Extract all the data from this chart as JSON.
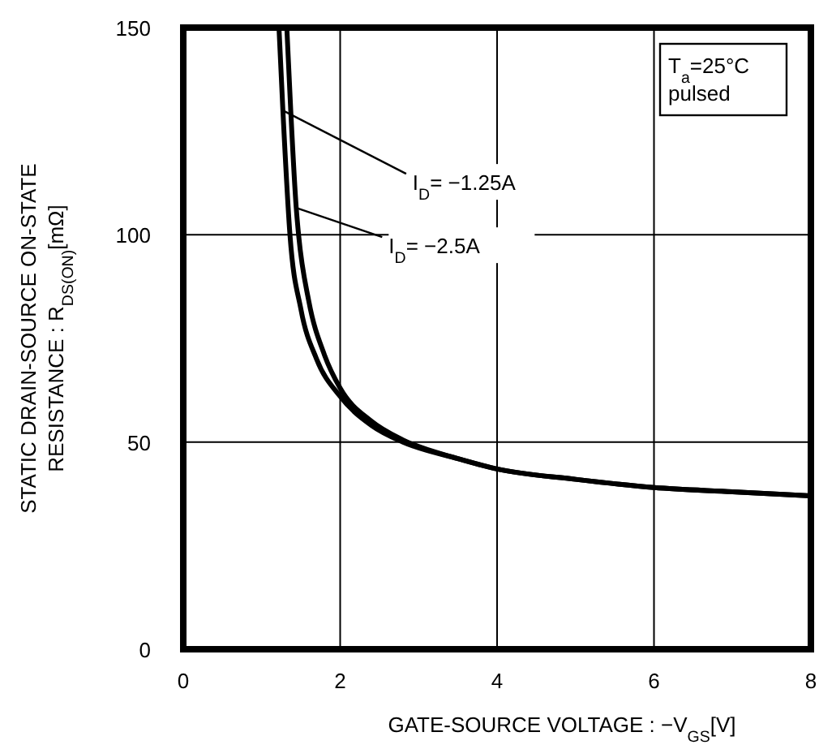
{
  "chart_data": {
    "type": "line",
    "xlabel": "GATE-SOURCE VOLTAGE : −V$_{GS}$[V]",
    "ylabel": "STATIC DRAIN-SOURCE ON-STATE\nRESISTANCE : R$_{DS(ON)}$[mΩ]",
    "xlim": [
      0,
      8
    ],
    "ylim": [
      0,
      150
    ],
    "xticks": [
      0,
      2,
      4,
      6,
      8
    ],
    "yticks": [
      0,
      50,
      100,
      150
    ],
    "grid": true,
    "marker": "none",
    "line_style": "solid",
    "series": [
      {
        "color": "#000000",
        "x": [
          1.22,
          1.27,
          1.36,
          1.5,
          1.7,
          2,
          2.4,
          2.8,
          3.5,
          4,
          5,
          6,
          7,
          8
        ],
        "values": [
          150,
          130,
          100,
          82,
          70,
          61,
          54,
          50,
          46,
          43.5,
          41,
          39,
          38,
          37
        ]
      },
      {
        "color": "#000000",
        "x": [
          1.32,
          1.37,
          1.44,
          1.47,
          1.6,
          1.8,
          2,
          2.4,
          2.8,
          3.5,
          4,
          5,
          6,
          7,
          8
        ],
        "values": [
          150,
          130,
          106.5,
          100,
          84,
          71,
          63,
          55,
          50.5,
          46,
          43.5,
          41,
          39,
          38,
          37
        ]
      }
    ],
    "annotations": [
      {
        "text": "I$_{D}$= −1.25A",
        "x": 1.27,
        "y": 130
      },
      {
        "text": "I$_{D}$= −2.5A",
        "x": 1.44,
        "y": 106.5
      },
      "T$_{a}$=25°C\npulsed"
    ]
  }
}
